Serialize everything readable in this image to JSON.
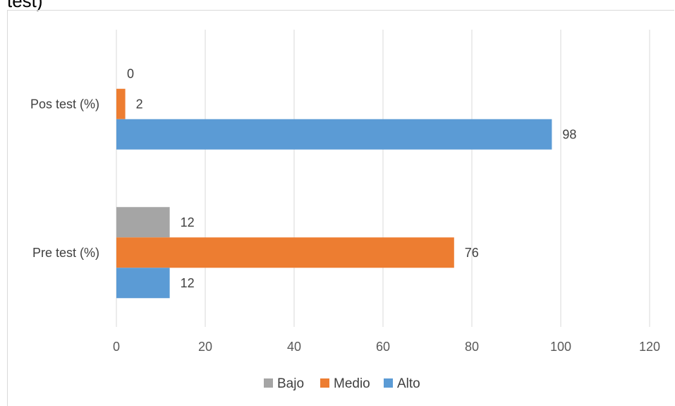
{
  "header": {
    "cut_title": "test)"
  },
  "chart_data": {
    "type": "bar",
    "orientation": "horizontal",
    "categories": [
      "Pre test (%)",
      "Pos test (%)"
    ],
    "series": [
      {
        "name": "Bajo",
        "color": "#a5a5a5",
        "values": [
          12,
          0
        ]
      },
      {
        "name": "Medio",
        "color": "#ed7d31",
        "values": [
          76,
          2
        ]
      },
      {
        "name": "Alto",
        "color": "#5b9bd5",
        "values": [
          12,
          98
        ]
      }
    ],
    "xlim": [
      0,
      120
    ],
    "xticks": [
      0,
      20,
      40,
      60,
      80,
      100,
      120
    ],
    "grid": true,
    "data_labels": true,
    "legend_position": "bottom"
  }
}
